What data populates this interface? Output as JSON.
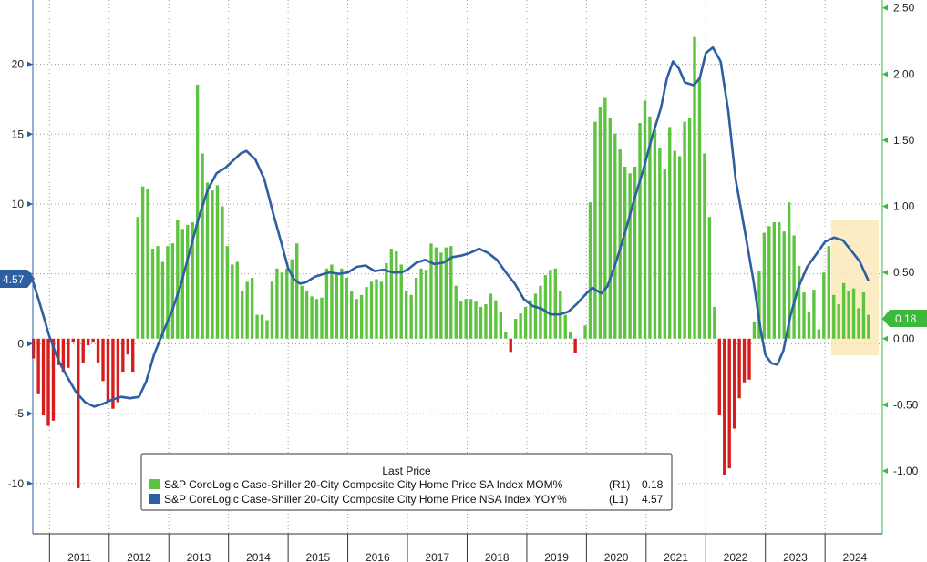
{
  "chart_data": {
    "type": "bar+line",
    "legend_title": "Last Price",
    "legend_placement": "bottom-center",
    "grid": true,
    "left_axis": {
      "ticks": [
        -10,
        -5,
        0,
        5,
        10,
        15,
        20
      ],
      "labels": [
        "-10",
        "-5",
        "0",
        "5",
        "10",
        "15",
        "20"
      ],
      "ylim": [
        -13.6,
        24.6
      ]
    },
    "right_axis": {
      "ticks": [
        -1.0,
        -0.5,
        0.0,
        0.5,
        1.0,
        1.5,
        2.0,
        2.5
      ],
      "labels": [
        "-1.00",
        "-0.50",
        "0.00",
        "0.50",
        "1.00",
        "1.50",
        "2.00",
        "2.50"
      ],
      "ylim": [
        -1.475,
        2.56
      ]
    },
    "x_axis": {
      "start": 2010.72,
      "end": 2024.96,
      "years": [
        "2011",
        "2012",
        "2013",
        "2014",
        "2015",
        "2016",
        "2017",
        "2018",
        "2019",
        "2020",
        "2021",
        "2022",
        "2023",
        "2024"
      ]
    },
    "highlight": {
      "x_start": 2024.1,
      "x_end": 2024.9,
      "color": "#fbe6b0"
    },
    "series": [
      {
        "name": "S&P CoreLogic Case-Shiller 20-City Composite City Home Price SA Index MOM%",
        "axis": "R1",
        "last_value": "0.18",
        "color_pos": "#5cc43e",
        "color_neg": "#d81c1c",
        "x_start": 2010.73,
        "step": 0.08333,
        "values": [
          -0.15,
          -0.42,
          -0.58,
          -0.66,
          -0.62,
          -0.2,
          -0.25,
          -0.22,
          -0.03,
          -1.13,
          -0.18,
          -0.05,
          -0.03,
          -0.18,
          -0.32,
          -0.48,
          -0.53,
          -0.48,
          -0.25,
          -0.12,
          -0.25,
          0.92,
          1.15,
          1.13,
          0.68,
          0.7,
          0.58,
          0.7,
          0.72,
          0.9,
          0.83,
          0.86,
          0.88,
          1.92,
          1.4,
          1.18,
          1.12,
          1.16,
          1.0,
          0.7,
          0.56,
          0.58,
          0.36,
          0.43,
          0.46,
          0.18,
          0.18,
          0.14,
          0.43,
          0.53,
          0.5,
          0.53,
          0.6,
          0.72,
          0.4,
          0.36,
          0.32,
          0.3,
          0.31,
          0.53,
          0.56,
          0.5,
          0.53,
          0.46,
          0.36,
          0.3,
          0.33,
          0.39,
          0.43,
          0.45,
          0.43,
          0.57,
          0.68,
          0.66,
          0.56,
          0.36,
          0.33,
          0.46,
          0.53,
          0.52,
          0.72,
          0.69,
          0.65,
          0.69,
          0.7,
          0.4,
          0.28,
          0.3,
          0.3,
          0.28,
          0.24,
          0.26,
          0.34,
          0.29,
          0.2,
          0.05,
          -0.1,
          0.15,
          0.19,
          0.24,
          0.29,
          0.34,
          0.4,
          0.48,
          0.52,
          0.53,
          0.36,
          0.18,
          0.05,
          -0.11,
          0.0,
          0.1,
          1.03,
          1.64,
          1.75,
          1.82,
          1.67,
          1.55,
          1.43,
          1.3,
          1.25,
          1.3,
          1.63,
          1.8,
          1.68,
          1.58,
          1.44,
          1.28,
          1.6,
          1.42,
          1.38,
          1.64,
          1.67,
          2.28,
          1.98,
          1.4,
          0.92,
          0.24,
          -0.58,
          -1.03,
          -0.98,
          -0.68,
          -0.45,
          -0.33,
          -0.31,
          0.13,
          0.51,
          0.8,
          0.85,
          0.88,
          0.88,
          0.81,
          1.03,
          0.78,
          0.55,
          0.35,
          0.2,
          0.37,
          0.07,
          0.5,
          0.7,
          0.33,
          0.26,
          0.42,
          0.36,
          0.38,
          0.23,
          0.35,
          0.18
        ]
      },
      {
        "name": "S&P CoreLogic Case-Shiller 20-City Composite City Home Price NSA Index YOY%",
        "axis": "L1",
        "last_value": "4.57",
        "color": "#2e5fa3",
        "points": [
          [
            2010.72,
            4.5
          ],
          [
            2010.85,
            2.7
          ],
          [
            2011.0,
            0.5
          ],
          [
            2011.15,
            -1.2
          ],
          [
            2011.3,
            -2.4
          ],
          [
            2011.45,
            -3.5
          ],
          [
            2011.6,
            -4.2
          ],
          [
            2011.75,
            -4.5
          ],
          [
            2011.9,
            -4.3
          ],
          [
            2012.05,
            -4.0
          ],
          [
            2012.2,
            -3.8
          ],
          [
            2012.35,
            -3.9
          ],
          [
            2012.5,
            -3.8
          ],
          [
            2012.62,
            -2.7
          ],
          [
            2012.75,
            -0.8
          ],
          [
            2012.9,
            0.8
          ],
          [
            2013.05,
            2.3
          ],
          [
            2013.2,
            4.2
          ],
          [
            2013.35,
            6.6
          ],
          [
            2013.5,
            9.0
          ],
          [
            2013.65,
            11.0
          ],
          [
            2013.8,
            12.2
          ],
          [
            2013.95,
            12.6
          ],
          [
            2014.1,
            13.2
          ],
          [
            2014.2,
            13.6
          ],
          [
            2014.3,
            13.8
          ],
          [
            2014.45,
            13.2
          ],
          [
            2014.6,
            11.8
          ],
          [
            2014.75,
            9.3
          ],
          [
            2014.9,
            7.0
          ],
          [
            2015.0,
            5.4
          ],
          [
            2015.1,
            4.6
          ],
          [
            2015.2,
            4.3
          ],
          [
            2015.3,
            4.4
          ],
          [
            2015.45,
            4.8
          ],
          [
            2015.6,
            5.0
          ],
          [
            2015.7,
            5.1
          ],
          [
            2015.85,
            5.0
          ],
          [
            2016.0,
            5.1
          ],
          [
            2016.15,
            5.5
          ],
          [
            2016.3,
            5.6
          ],
          [
            2016.45,
            5.2
          ],
          [
            2016.6,
            5.3
          ],
          [
            2016.75,
            5.1
          ],
          [
            2016.9,
            5.1
          ],
          [
            2017.0,
            5.3
          ],
          [
            2017.15,
            5.8
          ],
          [
            2017.3,
            6.0
          ],
          [
            2017.45,
            5.7
          ],
          [
            2017.6,
            5.8
          ],
          [
            2017.75,
            6.2
          ],
          [
            2017.9,
            6.3
          ],
          [
            2018.05,
            6.5
          ],
          [
            2018.2,
            6.8
          ],
          [
            2018.35,
            6.5
          ],
          [
            2018.5,
            6.0
          ],
          [
            2018.65,
            5.1
          ],
          [
            2018.8,
            4.3
          ],
          [
            2018.95,
            3.2
          ],
          [
            2019.1,
            2.7
          ],
          [
            2019.25,
            2.5
          ],
          [
            2019.4,
            2.1
          ],
          [
            2019.55,
            2.1
          ],
          [
            2019.7,
            2.3
          ],
          [
            2019.85,
            2.9
          ],
          [
            2020.0,
            3.6
          ],
          [
            2020.1,
            4.0
          ],
          [
            2020.25,
            3.6
          ],
          [
            2020.35,
            4.1
          ],
          [
            2020.5,
            5.9
          ],
          [
            2020.65,
            8.0
          ],
          [
            2020.8,
            10.3
          ],
          [
            2020.95,
            12.4
          ],
          [
            2021.1,
            14.8
          ],
          [
            2021.25,
            16.9
          ],
          [
            2021.35,
            19.0
          ],
          [
            2021.45,
            20.2
          ],
          [
            2021.55,
            19.7
          ],
          [
            2021.65,
            18.7
          ],
          [
            2021.8,
            18.5
          ],
          [
            2021.9,
            19.0
          ],
          [
            2022.0,
            20.8
          ],
          [
            2022.12,
            21.2
          ],
          [
            2022.25,
            20.2
          ],
          [
            2022.38,
            16.6
          ],
          [
            2022.5,
            11.8
          ],
          [
            2022.65,
            8.2
          ],
          [
            2022.8,
            4.5
          ],
          [
            2022.92,
            1.0
          ],
          [
            2023.0,
            -0.8
          ],
          [
            2023.1,
            -1.4
          ],
          [
            2023.2,
            -1.5
          ],
          [
            2023.3,
            -0.5
          ],
          [
            2023.42,
            2.0
          ],
          [
            2023.55,
            4.0
          ],
          [
            2023.7,
            5.5
          ],
          [
            2023.85,
            6.4
          ],
          [
            2024.0,
            7.3
          ],
          [
            2024.15,
            7.6
          ],
          [
            2024.3,
            7.4
          ],
          [
            2024.45,
            6.6
          ],
          [
            2024.58,
            5.9
          ],
          [
            2024.72,
            4.57
          ]
        ]
      }
    ]
  },
  "legend": {
    "title": "Last Price",
    "items": [
      {
        "label": "S&P CoreLogic Case-Shiller 20-City Composite City Home Price SA Index MOM%",
        "axis": "(R1)",
        "value": "0.18",
        "color": "#5cc43e"
      },
      {
        "label": "S&P CoreLogic Case-Shiller 20-City Composite City Home Price NSA Index YOY%",
        "axis": "(L1)",
        "value": "4.57",
        "color": "#2e5fa3"
      }
    ]
  },
  "badges": {
    "left": "4.57",
    "right": "0.18",
    "left_color": "#2e5fa3",
    "right_color": "#3cb83c"
  }
}
